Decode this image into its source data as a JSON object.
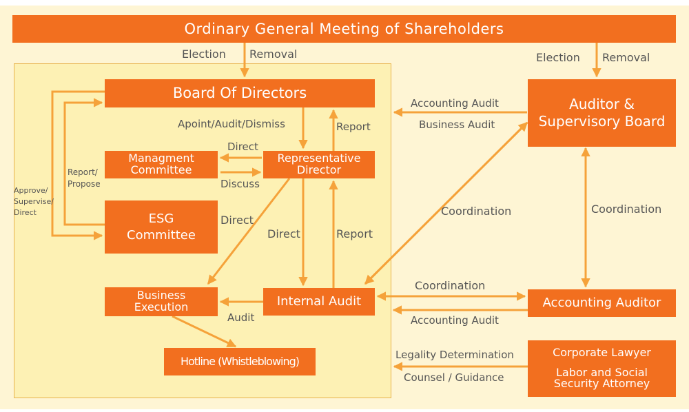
{
  "boxes": {
    "shareholders": "Ordinary General Meeting of Shareholders",
    "board": "Board Of Directors",
    "auditor_board_1": "Auditor &",
    "auditor_board_2": "Supervisory Board",
    "mgmt_1": "Managment",
    "mgmt_2": "Committee",
    "rep_1": "Representative",
    "rep_2": "Director",
    "esg_1": "ESG",
    "esg_2": "Committee",
    "biz_1": "Business",
    "biz_2": "Execution",
    "internal_audit": "Internal Audit",
    "accounting_auditor": "Accounting Auditor",
    "hotline": "Hotline (Whistleblowing)",
    "lawyer_1": "Corporate Lawyer",
    "lawyer_2": "Labor and Social",
    "lawyer_3": "Security Attorney"
  },
  "labels": {
    "election_left": "Election",
    "removal_left": "Removal",
    "election_right": "Election",
    "removal_right": "Removal",
    "accounting_audit_top": "Accounting Audit",
    "business_audit": "Business Audit",
    "appoint": "Apoint/Audit/Dismiss",
    "report_top": "Report",
    "direct_mgmt": "Direct",
    "discuss": "Discuss",
    "report_propose_1": "Report/",
    "report_propose_2": "Propose",
    "approve_1": "Approve/",
    "approve_2": "Supervise/",
    "approve_3": "Direct",
    "direct_esg": "Direct",
    "direct_down": "Direct",
    "report_up": "Report",
    "coord_diag": "Coordination",
    "coord_vert": "Coordination",
    "coord_horiz": "Coordination",
    "accounting_audit_bottom": "Accounting Audit",
    "audit": "Audit",
    "legality": "Legality Determination",
    "counsel": "Counsel / Guidance"
  },
  "colors": {
    "box": "#f26f1f",
    "arrow": "#f5a23a",
    "panel": "#fdf1b4",
    "background": "#fef5d4"
  }
}
